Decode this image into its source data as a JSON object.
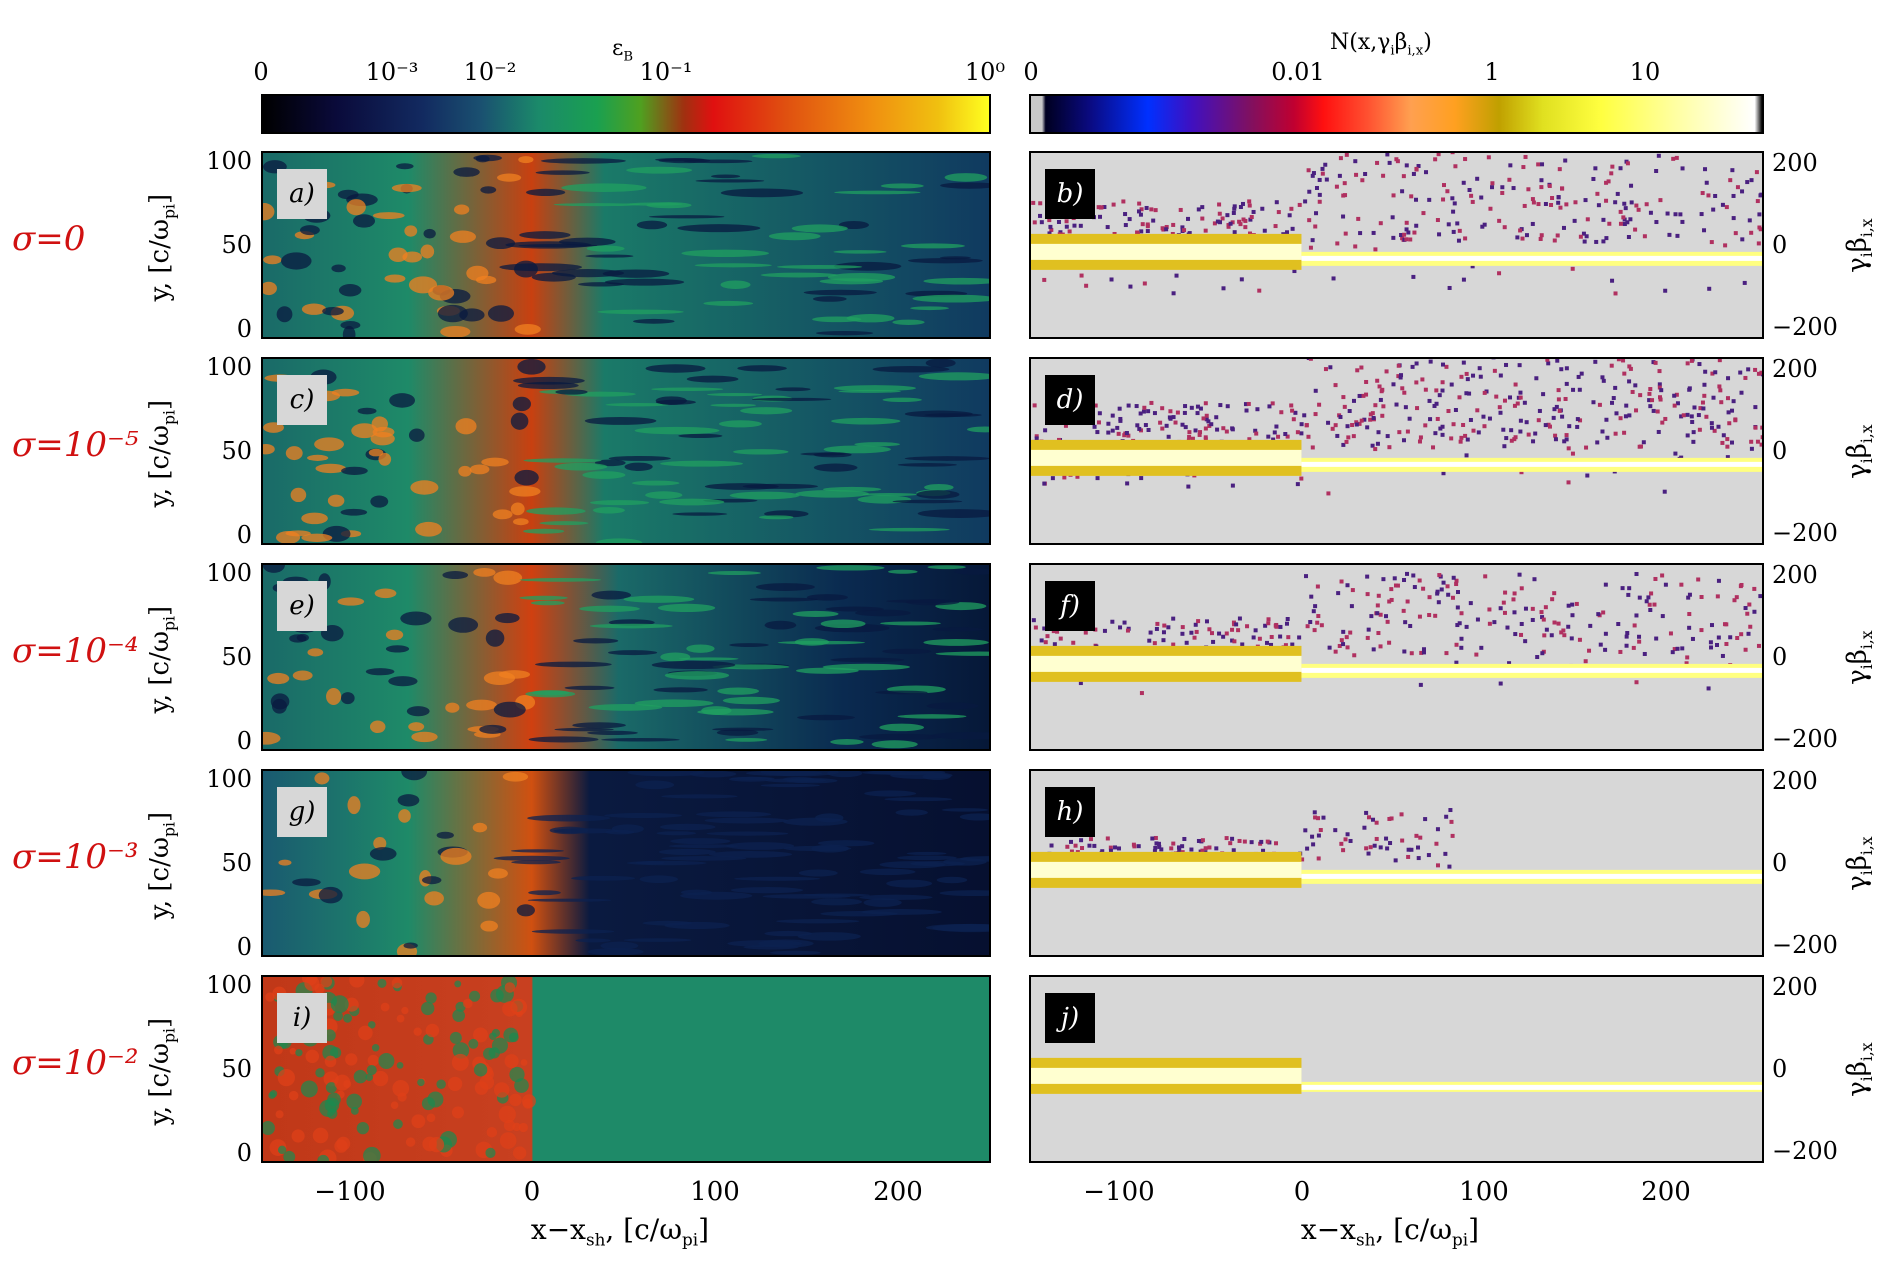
{
  "colorbar_left": {
    "title": "ε_B",
    "ticks": [
      "0",
      "10⁻³",
      "10⁻²",
      "10⁻¹",
      "10⁰"
    ]
  },
  "colorbar_right": {
    "title": "N(x,γ_iβ_i,x)",
    "ticks": [
      "0",
      "0.01",
      "1",
      "10"
    ]
  },
  "rows": [
    {
      "sigma": "σ=0",
      "left_tag": "a)",
      "right_tag": "b)"
    },
    {
      "sigma": "σ=10⁻⁵",
      "left_tag": "c)",
      "right_tag": "d)"
    },
    {
      "sigma": "σ=10⁻⁴",
      "left_tag": "e)",
      "right_tag": "f)"
    },
    {
      "sigma": "σ=10⁻³",
      "left_tag": "g)",
      "right_tag": "h)"
    },
    {
      "sigma": "σ=10⁻²",
      "left_tag": "i)",
      "right_tag": "j)"
    }
  ],
  "left_axis": {
    "ylabel": "y, [c/ω_pi]",
    "yticks": [
      "100",
      "50",
      "0"
    ],
    "xticks": [
      "−100",
      "0",
      "100",
      "200"
    ],
    "xlabel": "x−x_sh, [c/ω_pi]"
  },
  "right_axis": {
    "ylabel": "γ_iβ_i,x",
    "yticks": [
      "200",
      "0",
      "−200"
    ],
    "xticks": [
      "−100",
      "0",
      "100",
      "200"
    ],
    "xlabel": "x−x_sh, [c/ω_pi]"
  },
  "colors": {
    "sigma_label": "#d01010",
    "panel_bg_right": "#d7d7d7"
  }
}
